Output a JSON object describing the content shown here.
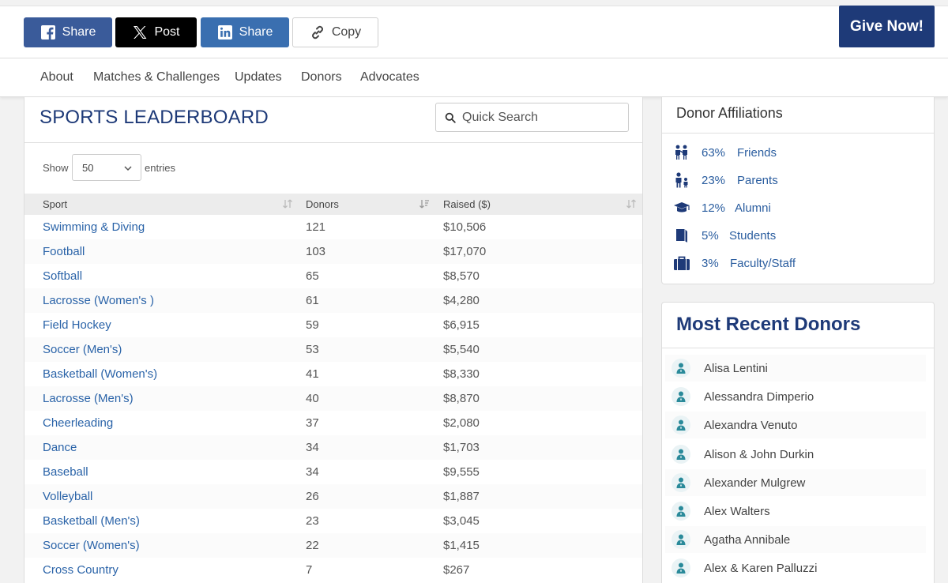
{
  "share_bar": {
    "facebook_label": "Share",
    "x_label": "Post",
    "linkedin_label": "Share",
    "copy_label": "Copy",
    "give_label": "Give Now!",
    "colors": {
      "facebook": "#3a5b9a",
      "x": "#000000",
      "linkedin": "#3a6fb0",
      "give": "#1e3a78"
    }
  },
  "nav": {
    "items": [
      {
        "label": "About"
      },
      {
        "label": "Matches & Challenges"
      },
      {
        "label": "Updates"
      },
      {
        "label": "Donors"
      },
      {
        "label": "Advocates"
      }
    ]
  },
  "leaderboard": {
    "title": "SPORTS LEADERBOARD",
    "search_placeholder": "Quick Search",
    "show_label": "Show",
    "entries_value": "50",
    "entries_label": "entries",
    "columns": {
      "sport": "Sport",
      "donors": "Donors",
      "raised": "Raised ($)"
    },
    "rows": [
      {
        "sport": "Swimming & Diving",
        "donors": "121",
        "raised": "$10,506"
      },
      {
        "sport": "Football",
        "donors": "103",
        "raised": "$17,070"
      },
      {
        "sport": "Softball",
        "donors": "65",
        "raised": "$8,570"
      },
      {
        "sport": "Lacrosse (Women's )",
        "donors": "61",
        "raised": "$4,280"
      },
      {
        "sport": "Field Hockey",
        "donors": "59",
        "raised": "$6,915"
      },
      {
        "sport": "Soccer (Men's)",
        "donors": "53",
        "raised": "$5,540"
      },
      {
        "sport": "Basketball (Women's)",
        "donors": "41",
        "raised": "$8,330"
      },
      {
        "sport": "Lacrosse (Men's)",
        "donors": "40",
        "raised": "$8,870"
      },
      {
        "sport": "Cheerleading",
        "donors": "37",
        "raised": "$2,080"
      },
      {
        "sport": "Dance",
        "donors": "34",
        "raised": "$1,703"
      },
      {
        "sport": "Baseball",
        "donors": "34",
        "raised": "$9,555"
      },
      {
        "sport": "Volleyball",
        "donors": "26",
        "raised": "$1,887"
      },
      {
        "sport": "Basketball (Men's)",
        "donors": "23",
        "raised": "$3,045"
      },
      {
        "sport": "Soccer (Women's)",
        "donors": "22",
        "raised": "$1,415"
      },
      {
        "sport": "Cross Country",
        "donors": "7",
        "raised": "$267"
      }
    ]
  },
  "affiliations": {
    "title": "Donor Affiliations",
    "items": [
      {
        "pct": "63%",
        "label": "Friends",
        "icon": "friends-icon"
      },
      {
        "pct": "23%",
        "label": "Parents",
        "icon": "parents-icon"
      },
      {
        "pct": "12%",
        "label": "Alumni",
        "icon": "graduation-cap-icon"
      },
      {
        "pct": "5%",
        "label": "Students",
        "icon": "book-icon"
      },
      {
        "pct": "3%",
        "label": "Faculty/Staff",
        "icon": "briefcase-icon"
      }
    ]
  },
  "recent_donors": {
    "title": "Most Recent Donors",
    "names": [
      "Alisa Lentini",
      "Alessandra Dimperio",
      "Alexandra Venuto",
      "Alison & John Durkin",
      "Alexander Mulgrew",
      "Alex Walters",
      "Agatha Annibale",
      "Alex & Karen Palluzzi"
    ]
  }
}
